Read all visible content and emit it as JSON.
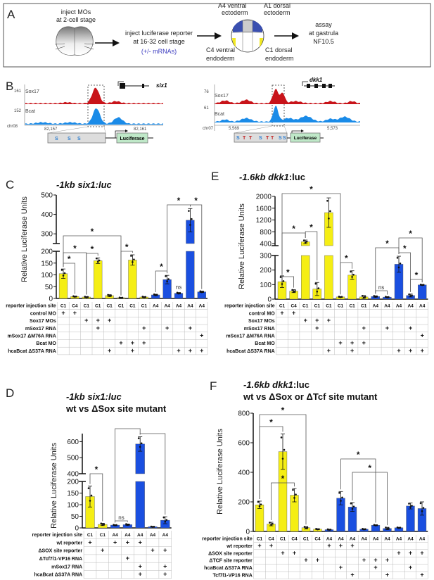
{
  "panel_a": {
    "letter": "A",
    "step1": [
      "inject MOs",
      "at 2-cell stage"
    ],
    "step2": [
      "inject  luciferase reporter",
      "at 16-32 cell stage"
    ],
    "step2_note": "(+/- mRNAs)",
    "regions": {
      "a4": [
        "A4 ventral",
        "ectoderm"
      ],
      "a1": [
        "A1 dorsal",
        "ectoderm"
      ],
      "c4": [
        "C4 ventral",
        "endoderm"
      ],
      "c1": [
        "C1 dorsal",
        "endoderm"
      ]
    },
    "step3": [
      "assay",
      "at gastrula",
      "NF10.5"
    ],
    "colors": {
      "ectoderm": "#3a4fb0",
      "endoderm": "#f3ea22",
      "note": "#3d3dc0"
    }
  },
  "panel_b": {
    "letter": "B",
    "left": {
      "gene": "six1",
      "track1": {
        "name": "Sox17",
        "max": "161"
      },
      "track2": {
        "name": "Bcat",
        "max": "152"
      },
      "chrom": "chr08",
      "coords": [
        "82,157",
        "82,161"
      ],
      "sites": [
        "S",
        "S",
        "S"
      ],
      "reporter": "Luciferase"
    },
    "right": {
      "gene": "dkk1",
      "track1": {
        "name": "Sox17",
        "max": "76"
      },
      "track2": {
        "name": "Bcat",
        "max": "61"
      },
      "chrom": "chr07",
      "coords": [
        "5,569",
        "5,573"
      ],
      "sites": [
        "S",
        "T",
        "T",
        "S",
        "T",
        "T",
        "S",
        "S"
      ],
      "reporter": "Luciferase"
    },
    "colors": {
      "sox17": "#c8141a",
      "bcat": "#1a8be8",
      "site_s": "#2f7fd0",
      "site_t": "#c02020",
      "luciferase": "#bfe8c8"
    }
  },
  "chart_data": [
    {
      "id": "C",
      "type": "bar",
      "letter": "C",
      "title_italic": "-1kb six1:luc",
      "title_plain": "",
      "subtitle": "",
      "ylabel": "Relative Luciferase Units",
      "y_broken_axis": [
        [
          0,
          200
        ],
        [
          250,
          500
        ]
      ],
      "yticks": [
        0,
        50,
        100,
        150,
        200,
        300,
        400,
        500
      ],
      "site_colors": {
        "C1": "#f5ee14",
        "C4": "#f5ee14",
        "A4": "#1a4fe0"
      },
      "sites_label": "reporter injection site",
      "sites": [
        "C1",
        "C4",
        "C1",
        "C1",
        "C1",
        "C1",
        "C1",
        "C1",
        "A4",
        "A4",
        "A4",
        "A4",
        "A4"
      ],
      "values": [
        105,
        8,
        6,
        160,
        12,
        3,
        163,
        6,
        15,
        80,
        22,
        370,
        28
      ],
      "errors": [
        20,
        2,
        2,
        12,
        4,
        1,
        22,
        2,
        3,
        18,
        3,
        60,
        3
      ],
      "conditions": [
        {
          "label": "control MO",
          "marks": [
            "+",
            "+",
            "",
            "",
            "",
            "",
            "",
            "",
            "",
            "",
            "",
            "",
            ""
          ]
        },
        {
          "label": "Sox17 MOs",
          "marks": [
            "",
            "",
            "+",
            "+",
            "+",
            "",
            "",
            "",
            "",
            "",
            "",
            "",
            ""
          ]
        },
        {
          "label": "mSox17 RNA",
          "marks": [
            "",
            "",
            "",
            "+",
            "",
            "",
            "",
            "+",
            "",
            "+",
            "",
            "+",
            ""
          ]
        },
        {
          "label": "mSox17 ΔM76A RNA",
          "marks": [
            "",
            "",
            "",
            "",
            "",
            "",
            "",
            "",
            "",
            "",
            "",
            "",
            "+"
          ]
        },
        {
          "label": "Bcat MO",
          "marks": [
            "",
            "",
            "",
            "",
            "",
            "+",
            "+",
            "+",
            "",
            "",
            "",
            "",
            ""
          ]
        },
        {
          "label": "hcaBcat ΔS37A RNA",
          "marks": [
            "",
            "",
            "",
            "",
            "+",
            "",
            "+",
            "",
            "",
            "",
            "+",
            "+",
            "+"
          ]
        }
      ],
      "significance": [
        [
          0,
          1,
          "*"
        ],
        [
          0,
          2,
          "*"
        ],
        [
          2,
          3,
          "*"
        ],
        [
          0,
          5,
          "*"
        ],
        [
          5,
          6,
          "*"
        ],
        [
          8,
          9,
          "*"
        ],
        [
          10,
          10,
          "ns"
        ],
        [
          9,
          11,
          "*"
        ],
        [
          11,
          12,
          "*"
        ]
      ]
    },
    {
      "id": "E",
      "type": "bar",
      "letter": "E",
      "title_italic": "-1.6kb dkk1",
      "title_plain": ":luc",
      "subtitle": "",
      "ylabel": "Relative Luciferase Units",
      "y_broken_axis": [
        [
          0,
          300
        ],
        [
          330,
          2000
        ]
      ],
      "yticks": [
        0,
        100,
        200,
        300,
        400,
        800,
        1200,
        1600,
        2000
      ],
      "site_colors": {
        "C1": "#f5ee14",
        "C4": "#f5ee14",
        "A4": "#1a4fe0"
      },
      "sites_label": "reporter injection site",
      "sites": [
        "C1",
        "C4",
        "C1",
        "C1",
        "C1",
        "C1",
        "C1",
        "C1",
        "A4",
        "A4",
        "A4",
        "A4",
        "A4"
      ],
      "values": [
        120,
        55,
        460,
        70,
        1450,
        15,
        165,
        15,
        18,
        14,
        240,
        25,
        98
      ],
      "errors": [
        40,
        10,
        60,
        45,
        500,
        3,
        30,
        10,
        5,
        3,
        55,
        10,
        3
      ],
      "conditions": [
        {
          "label": "control MO",
          "marks": [
            "+",
            "+",
            "",
            "",
            "",
            "",
            "",
            "",
            "",
            "",
            "",
            "",
            ""
          ]
        },
        {
          "label": "Sox17 MOs",
          "marks": [
            "",
            "",
            "+",
            "+",
            "+",
            "",
            "",
            "",
            "",
            "",
            "",
            "",
            ""
          ]
        },
        {
          "label": "mSox17 RNA",
          "marks": [
            "",
            "",
            "",
            "+",
            "",
            "",
            "",
            "+",
            "",
            "+",
            "",
            "+",
            ""
          ]
        },
        {
          "label": "mSox17 ΔM76A RNA",
          "marks": [
            "",
            "",
            "",
            "",
            "",
            "",
            "",
            "",
            "",
            "",
            "",
            "",
            "+"
          ]
        },
        {
          "label": "Bcat MO",
          "marks": [
            "",
            "",
            "",
            "",
            "",
            "+",
            "+",
            "+",
            "",
            "",
            "",
            "",
            ""
          ]
        },
        {
          "label": "hcaBcat ΔS37A RNA",
          "marks": [
            "",
            "",
            "",
            "",
            "+",
            "",
            "+",
            "",
            "",
            "",
            "+",
            "+",
            "+"
          ]
        }
      ],
      "significance": [
        [
          0,
          1,
          "*"
        ],
        [
          0,
          2,
          "*"
        ],
        [
          2,
          3,
          "*"
        ],
        [
          0,
          5,
          "*"
        ],
        [
          5,
          6,
          "*"
        ],
        [
          8,
          9,
          "ns"
        ],
        [
          8,
          10,
          "*"
        ],
        [
          10,
          11,
          "*"
        ],
        [
          10,
          12,
          "*"
        ],
        [
          11,
          12,
          "*"
        ]
      ]
    },
    {
      "id": "D",
      "type": "bar",
      "letter": "D",
      "title_italic": "-1kb six1:luc",
      "title_plain": "",
      "subtitle": "wt vs ΔSox site mutant",
      "ylabel": "Relative Luciferase Units",
      "y_broken_axis": [
        [
          0,
          200
        ],
        [
          400,
          650
        ]
      ],
      "yticks": [
        0,
        50,
        100,
        150,
        200,
        400,
        500,
        600
      ],
      "site_colors": {
        "C1": "#f5ee14",
        "C4": "#f5ee14",
        "A4": "#1a4fe0"
      },
      "sites_label": "reporter injection site",
      "sites": [
        "C1",
        "C1",
        "A4",
        "A4",
        "A4",
        "A4",
        "A4"
      ],
      "values": [
        135,
        15,
        12,
        14,
        585,
        5,
        33
      ],
      "errors": [
        45,
        5,
        2,
        3,
        45,
        1,
        15
      ],
      "conditions": [
        {
          "label": "wt reporter",
          "marks": [
            "+",
            "",
            "+",
            "+",
            "+",
            "",
            ""
          ]
        },
        {
          "label": "ΔSOX site reporter",
          "marks": [
            "",
            "+",
            "",
            "",
            "",
            "+",
            "+"
          ]
        },
        {
          "label": "ΔTcf7l1-VP16 RNA",
          "marks": [
            "",
            "",
            "",
            "+",
            "",
            "",
            ""
          ]
        },
        {
          "label": "mSox17 RNA",
          "marks": [
            "",
            "",
            "",
            "",
            "+",
            "",
            "+"
          ]
        },
        {
          "label": "hcaBcat ΔS37A RNA",
          "marks": [
            "",
            "",
            "",
            "",
            "+",
            "",
            "+"
          ]
        }
      ],
      "significance": [
        [
          0,
          1,
          "*"
        ],
        [
          2,
          3,
          "ns"
        ],
        [
          2,
          4,
          ""
        ],
        [
          4,
          6,
          ""
        ]
      ]
    },
    {
      "id": "F",
      "type": "bar",
      "letter": "F",
      "title_italic": "-1.6kb dkk1",
      "title_plain": ":luc",
      "subtitle": "wt vs ΔSox or ΔTcf site mutant",
      "ylabel": "Relative Luciferase Units",
      "y_broken_axis": [
        [
          0,
          800
        ]
      ],
      "yticks": [
        0,
        200,
        400,
        600,
        800
      ],
      "site_colors": {
        "C1": "#f5ee14",
        "C4": "#f5ee14",
        "A4": "#1a4fe0"
      },
      "sites_label": "reporter injection site",
      "sites": [
        "C1",
        "C4",
        "C1",
        "C4",
        "C1",
        "C4",
        "A4",
        "A4",
        "A4",
        "A4",
        "A4",
        "A4",
        "A4",
        "A4",
        "A4"
      ],
      "values": [
        180,
        50,
        540,
        245,
        25,
        15,
        12,
        225,
        165,
        15,
        42,
        20,
        25,
        172,
        155
      ],
      "errors": [
        25,
        12,
        120,
        45,
        8,
        3,
        3,
        45,
        30,
        3,
        3,
        8,
        3,
        20,
        45
      ],
      "conditions": [
        {
          "label": "wt reporter",
          "marks": [
            "+",
            "+",
            "",
            "",
            "",
            "",
            "+",
            "+",
            "+",
            "",
            "",
            "",
            "",
            "",
            ""
          ]
        },
        {
          "label": "ΔSOX site reporter",
          "marks": [
            "",
            "",
            "+",
            "+",
            "",
            "",
            "",
            "",
            "",
            "",
            "",
            "",
            "+",
            "+",
            "+"
          ]
        },
        {
          "label": "ΔTCF site reporter",
          "marks": [
            "",
            "",
            "",
            "",
            "+",
            "+",
            "",
            "",
            "",
            "+",
            "+",
            "+",
            "",
            "",
            ""
          ]
        },
        {
          "label": "hcaBcat ΔS37A RNA",
          "marks": [
            "",
            "",
            "",
            "",
            "",
            "",
            "",
            "+",
            "",
            "",
            "+",
            "",
            "",
            "+",
            ""
          ]
        },
        {
          "label": "Tcf7l1-VP16 RNA",
          "marks": [
            "",
            "",
            "",
            "",
            "",
            "",
            "",
            "",
            "+",
            "",
            "",
            "+",
            "",
            "",
            "+"
          ]
        }
      ],
      "significance": [
        [
          0,
          4,
          "*"
        ],
        [
          0,
          2,
          "*"
        ],
        [
          1,
          3,
          "*"
        ],
        [
          7,
          10,
          "*"
        ],
        [
          8,
          11,
          "*"
        ]
      ]
    }
  ]
}
